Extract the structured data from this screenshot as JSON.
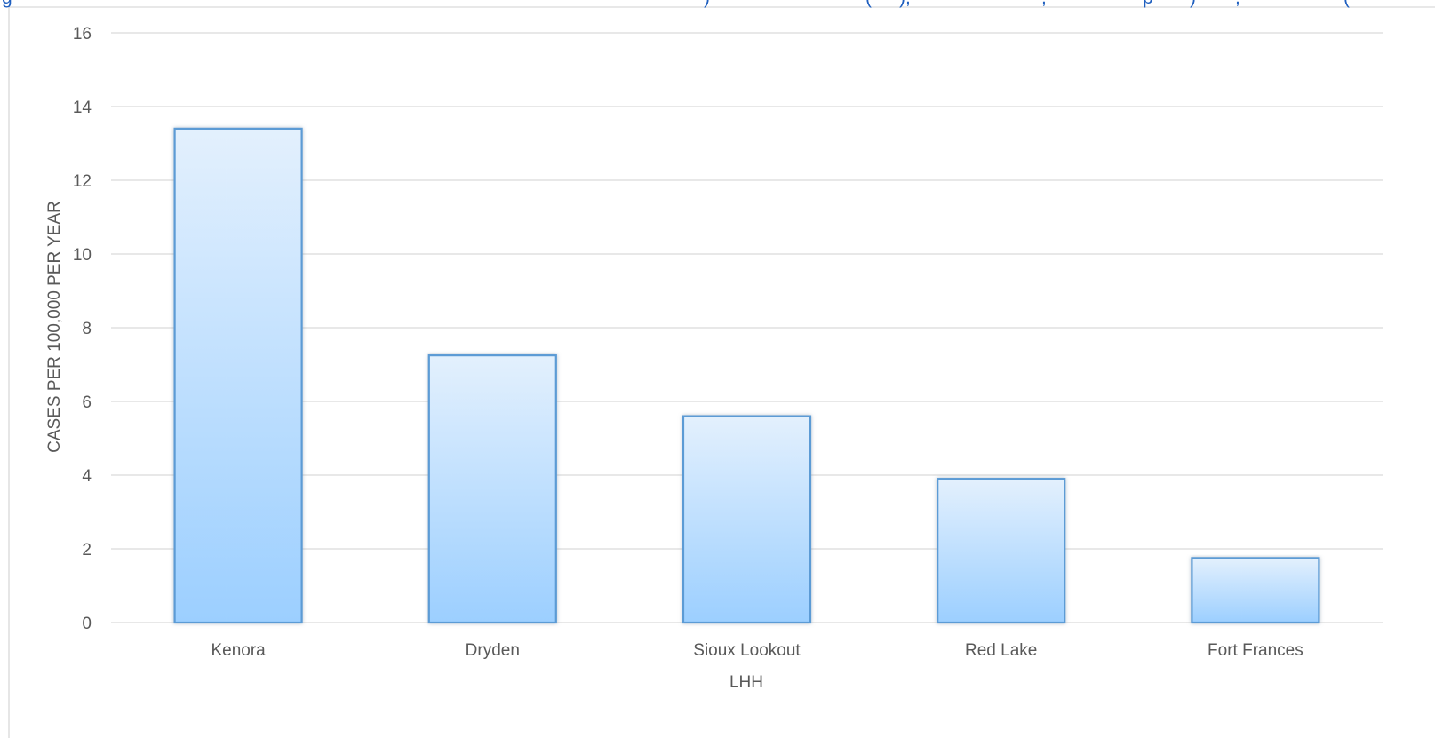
{
  "header_fragments": [
    {
      "text": "g"
    },
    {
      "text": ")"
    },
    {
      "text": "("
    },
    {
      "text": "),"
    },
    {
      "text": ","
    },
    {
      "text": "p"
    },
    {
      "text": ")"
    },
    {
      "text": ","
    },
    {
      "text": "("
    }
  ],
  "colors": {
    "bar_top": "#e3f0fd",
    "bar_bottom": "#9ccfff",
    "bar_border": "#5b9bd5",
    "gridline": "#d9d9d9",
    "text": "#595959",
    "header_text": "#1f5fbf"
  },
  "chart_data": {
    "type": "bar",
    "categories": [
      "Kenora",
      "Dryden",
      "Sioux Lookout",
      "Red Lake",
      "Fort Frances"
    ],
    "values": [
      13.4,
      7.25,
      5.6,
      3.9,
      1.75
    ],
    "title": "",
    "xlabel": "LHH",
    "ylabel": "CASES PER 100,000 PER YEAR",
    "ylim": [
      0,
      16
    ],
    "yticks": [
      0,
      2,
      4,
      6,
      8,
      10,
      12,
      14,
      16
    ],
    "grid": true,
    "legend": "none"
  }
}
